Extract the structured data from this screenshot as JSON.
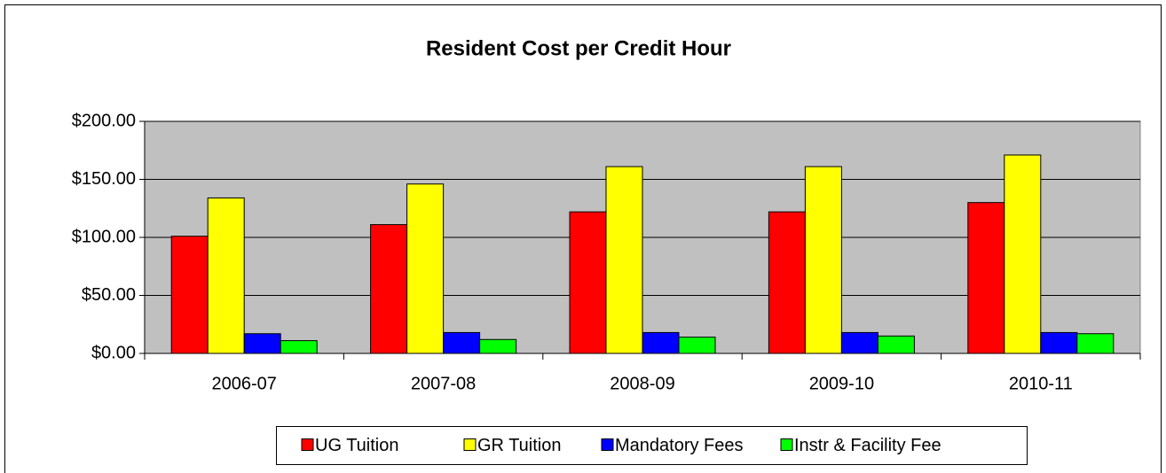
{
  "chart_data": {
    "type": "bar",
    "title": "Resident Cost per Credit Hour",
    "categories": [
      "2006-07",
      "2007-08",
      "2008-09",
      "2009-10",
      "2010-11"
    ],
    "series": [
      {
        "name": "UG Tuition",
        "color": "#ff0000",
        "values": [
          101,
          111,
          122,
          122,
          130
        ]
      },
      {
        "name": "GR Tuition",
        "color": "#ffff00",
        "values": [
          134,
          146,
          161,
          161,
          171
        ]
      },
      {
        "name": "Mandatory Fees",
        "color": "#0000ff",
        "values": [
          17,
          18,
          18,
          18,
          18
        ]
      },
      {
        "name": "Instr & Facility Fee",
        "color": "#00ff00",
        "values": [
          11,
          12,
          14,
          15,
          17
        ]
      }
    ],
    "ylim": [
      0,
      200
    ],
    "yticks": [
      {
        "value": 0,
        "label": "$0.00"
      },
      {
        "value": 50,
        "label": "$50.00"
      },
      {
        "value": 100,
        "label": "$100.00"
      },
      {
        "value": 150,
        "label": "$150.00"
      },
      {
        "value": 200,
        "label": "$200.00"
      }
    ],
    "grid": true,
    "legend": "bottom"
  }
}
